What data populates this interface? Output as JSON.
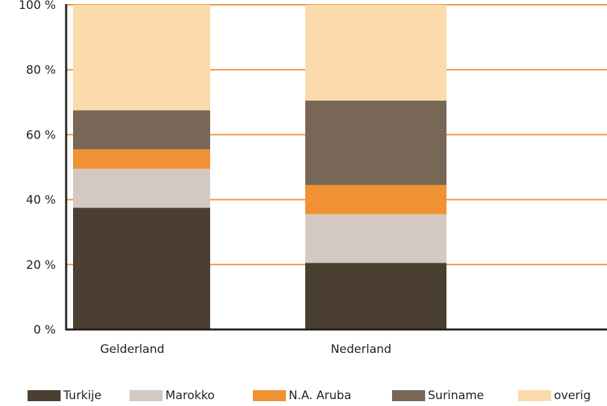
{
  "chart_data": {
    "type": "bar",
    "stacked": true,
    "categories": [
      "Gelderland",
      "Nederland"
    ],
    "series": [
      {
        "name": "Turkije",
        "color": "#4a3f31",
        "values": [
          37.5,
          20.5
        ]
      },
      {
        "name": "Marokko",
        "color": "#d3c9c2",
        "values": [
          12.0,
          15.0
        ]
      },
      {
        "name": "N.A. Aruba",
        "color": "#f09233",
        "values": [
          6.0,
          9.0
        ]
      },
      {
        "name": "Suriname",
        "color": "#786757",
        "values": [
          12.0,
          26.0
        ]
      },
      {
        "name": "overig",
        "color": "#fbdaab",
        "values": [
          32.5,
          29.5
        ]
      }
    ],
    "ylim": [
      0,
      100
    ],
    "yticks": [
      0,
      20,
      40,
      60,
      80,
      100
    ],
    "ytick_labels": [
      "0 %",
      "20 %",
      "40 %",
      "60 %",
      "80 %",
      "100 %"
    ],
    "grid": true,
    "grid_color": "#f09233",
    "axis_color": "#231f20",
    "legend_position": "bottom",
    "title": "",
    "xlabel": "",
    "ylabel": ""
  }
}
